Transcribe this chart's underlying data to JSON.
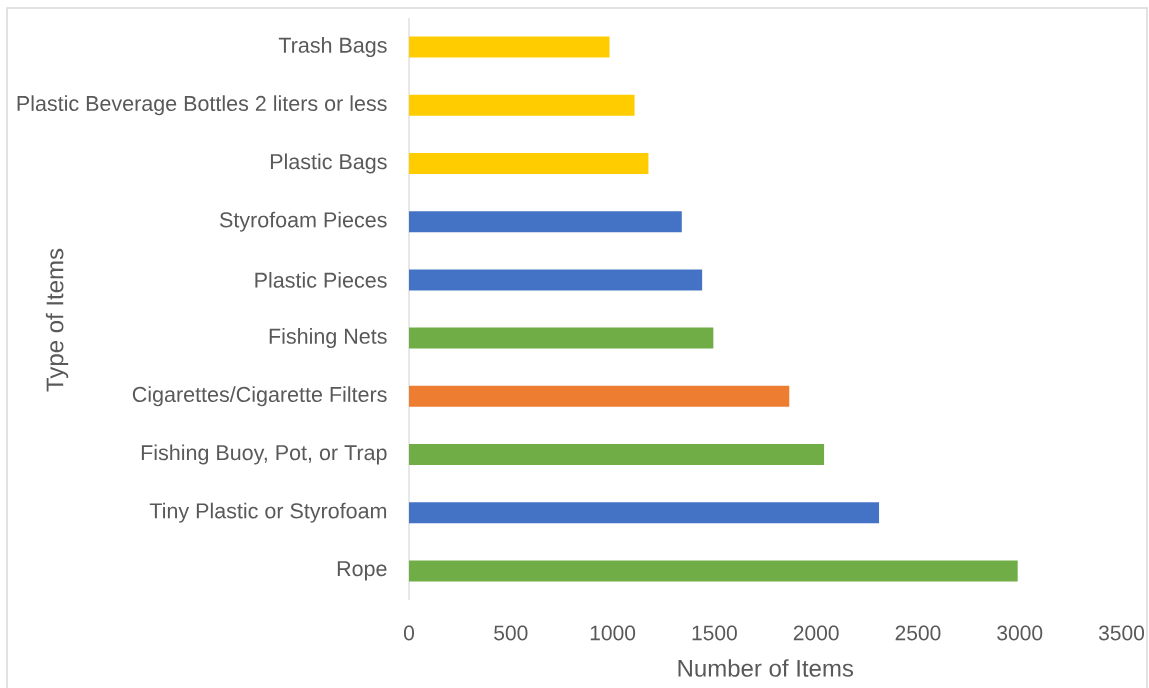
{
  "chart_data": {
    "type": "bar",
    "orientation": "horizontal",
    "xlabel": "Number of Items",
    "ylabel": "Type of Items",
    "categories": [
      "Trash Bags",
      "Plastic Beverage Bottles 2 liters or less",
      "Plastic Bags",
      "Styrofoam Pieces",
      "Plastic Pieces",
      "Fishing Nets",
      "Cigarettes/Cigarette Filters",
      "Fishing Buoy, Pot, or Trap",
      "Tiny Plastic or Styrofoam",
      "Rope"
    ],
    "values": [
      985,
      1108,
      1176,
      1340,
      1440,
      1495,
      1868,
      2039,
      2309,
      2990
    ],
    "colors": [
      "#ffcc00",
      "#ffcc00",
      "#ffcc00",
      "#4472c4",
      "#4472c4",
      "#70ad47",
      "#ed7d31",
      "#70ad47",
      "#4472c4",
      "#70ad47"
    ],
    "xlim": [
      0,
      3500
    ],
    "xticks": [
      0,
      500,
      1000,
      1500,
      2000,
      2500,
      3000,
      3500
    ]
  }
}
